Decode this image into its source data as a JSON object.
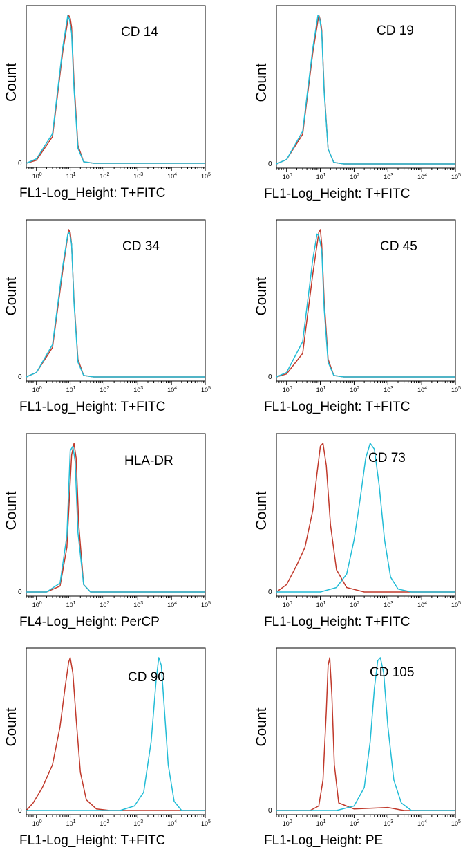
{
  "figure": {
    "ylabel": "Count",
    "zero_label": "0",
    "series_colors": {
      "control": "#c0392b",
      "antibody": "#22bcd6"
    }
  },
  "chart_data": [
    {
      "type": "line",
      "title": "CD 14",
      "xlabel": "FL1-Log_Height: T+FITC",
      "ylabel": "Count",
      "xscale": "log",
      "xlim": [
        0.5,
        100000
      ],
      "ylim": [
        0,
        1.0
      ],
      "grid": false,
      "series": [
        {
          "values_x": [
            0.5,
            1.0,
            3.0,
            6.0,
            9.0,
            10.0,
            11.0,
            13.0,
            17.0,
            25.0,
            50.0,
            100000
          ],
          "values_y": [
            0.0,
            0.02,
            0.18,
            0.75,
            1.0,
            0.98,
            0.92,
            0.55,
            0.12,
            0.01,
            0.0,
            0.0
          ]
        },
        {
          "values_x": [
            0.5,
            1.0,
            3.0,
            6.0,
            8.5,
            9.5,
            11.0,
            13.0,
            17.0,
            25.0,
            50.0,
            100000
          ],
          "values_y": [
            0.0,
            0.03,
            0.2,
            0.78,
            1.0,
            0.97,
            0.88,
            0.5,
            0.1,
            0.01,
            0.0,
            0.0
          ]
        }
      ]
    },
    {
      "type": "line",
      "title": "CD 19",
      "xlabel": "FL1-Log_Height: T+FITC",
      "ylabel": "Count",
      "xscale": "log",
      "xlim": [
        0.5,
        100000
      ],
      "ylim": [
        0,
        1.0
      ],
      "grid": false,
      "series": [
        {
          "values_x": [
            0.5,
            1.0,
            3.0,
            6.0,
            9.0,
            10.0,
            11.0,
            13.0,
            17.0,
            25.0,
            50.0,
            100000
          ],
          "values_y": [
            0.0,
            0.03,
            0.2,
            0.75,
            1.0,
            0.97,
            0.9,
            0.5,
            0.1,
            0.01,
            0.0,
            0.0
          ]
        },
        {
          "values_x": [
            0.5,
            1.0,
            3.0,
            6.0,
            8.5,
            9.5,
            11.0,
            13.0,
            17.0,
            25.0,
            50.0,
            100000
          ],
          "values_y": [
            0.0,
            0.03,
            0.22,
            0.78,
            1.0,
            0.98,
            0.88,
            0.48,
            0.1,
            0.01,
            0.0,
            0.0
          ]
        }
      ]
    },
    {
      "type": "line",
      "title": "CD 34",
      "xlabel": "FL1-Log_Height: T+FITC",
      "ylabel": "Count",
      "xscale": "log",
      "xlim": [
        0.5,
        100000
      ],
      "ylim": [
        0,
        1.0
      ],
      "grid": false,
      "series": [
        {
          "values_x": [
            0.5,
            1.0,
            3.0,
            6.0,
            9.0,
            10.0,
            11.0,
            13.0,
            17.0,
            25.0,
            50.0,
            100000
          ],
          "values_y": [
            0.0,
            0.03,
            0.2,
            0.72,
            1.0,
            0.98,
            0.9,
            0.52,
            0.12,
            0.01,
            0.0,
            0.0
          ]
        },
        {
          "values_x": [
            0.5,
            1.0,
            3.0,
            6.0,
            8.5,
            9.5,
            11.0,
            13.0,
            17.0,
            25.0,
            50.0,
            100000
          ],
          "values_y": [
            0.0,
            0.03,
            0.22,
            0.75,
            0.97,
            0.98,
            0.9,
            0.5,
            0.1,
            0.01,
            0.0,
            0.0
          ]
        }
      ]
    },
    {
      "type": "line",
      "title": "CD 45",
      "xlabel": "FL1-Log_Height: T+FITC",
      "ylabel": "Count",
      "xscale": "log",
      "xlim": [
        0.5,
        100000
      ],
      "ylim": [
        0,
        1.0
      ],
      "grid": false,
      "series": [
        {
          "values_x": [
            0.5,
            1.0,
            3.0,
            6.0,
            9.0,
            10.0,
            11.0,
            13.0,
            17.0,
            25.0,
            50.0,
            100000
          ],
          "values_y": [
            0.0,
            0.02,
            0.16,
            0.7,
            0.98,
            1.0,
            0.9,
            0.52,
            0.12,
            0.01,
            0.0,
            0.0
          ]
        },
        {
          "values_x": [
            0.5,
            1.0,
            3.0,
            6.0,
            8.0,
            9.0,
            11.0,
            13.0,
            17.0,
            25.0,
            50.0,
            100000
          ],
          "values_y": [
            0.0,
            0.03,
            0.24,
            0.8,
            0.97,
            0.96,
            0.86,
            0.46,
            0.1,
            0.01,
            0.0,
            0.0
          ]
        }
      ]
    },
    {
      "type": "line",
      "title": "HLA-DR",
      "xlabel": "FL4-Log_Height: PerCP",
      "ylabel": "Count",
      "xscale": "log",
      "xlim": [
        0.5,
        100000
      ],
      "ylim": [
        0,
        1.0
      ],
      "grid": false,
      "series": [
        {
          "values_x": [
            0.5,
            2.0,
            5.0,
            8.0,
            11.0,
            13.0,
            15.0,
            18.0,
            25.0,
            40.0,
            100000
          ],
          "values_y": [
            0.0,
            0.0,
            0.04,
            0.3,
            0.92,
            1.0,
            0.9,
            0.45,
            0.05,
            0.0,
            0.0
          ]
        },
        {
          "values_x": [
            0.5,
            2.0,
            5.0,
            8.0,
            10.0,
            12.0,
            14.0,
            17.0,
            25.0,
            40.0,
            100000
          ],
          "values_y": [
            0.0,
            0.0,
            0.06,
            0.38,
            0.95,
            0.98,
            0.88,
            0.4,
            0.05,
            0.0,
            0.0
          ]
        }
      ]
    },
    {
      "type": "line",
      "title": "CD 73",
      "xlabel": "FL1-Log_Height: T+FITC",
      "ylabel": "Count",
      "xscale": "log",
      "xlim": [
        0.5,
        100000
      ],
      "ylim": [
        0,
        1.0
      ],
      "grid": false,
      "series": [
        {
          "values_x": [
            0.5,
            1.0,
            2.0,
            3.5,
            6.0,
            8.0,
            10.0,
            12.0,
            15.0,
            20.0,
            30.0,
            60.0,
            200.0,
            1000.0,
            100000
          ],
          "values_y": [
            0.0,
            0.05,
            0.18,
            0.3,
            0.55,
            0.8,
            0.98,
            1.0,
            0.85,
            0.45,
            0.15,
            0.03,
            0.0,
            0.0,
            0.0
          ]
        },
        {
          "values_x": [
            0.5,
            10.0,
            30.0,
            60.0,
            100.0,
            150.0,
            220.0,
            300.0,
            400.0,
            550.0,
            800.0,
            1200.0,
            2000.0,
            5000.0,
            100000
          ],
          "values_y": [
            0.0,
            0.0,
            0.03,
            0.12,
            0.35,
            0.62,
            0.9,
            1.0,
            0.96,
            0.72,
            0.35,
            0.1,
            0.02,
            0.0,
            0.0
          ]
        }
      ]
    },
    {
      "type": "line",
      "title": "CD 90",
      "xlabel": "FL1-Log_Height: T+FITC",
      "ylabel": "Count",
      "xscale": "log",
      "xlim": [
        0.5,
        100000
      ],
      "ylim": [
        0,
        1.0
      ],
      "grid": false,
      "series": [
        {
          "values_x": [
            0.5,
            0.8,
            1.5,
            3.0,
            5.0,
            7.0,
            9.0,
            10.0,
            12.0,
            15.0,
            20.0,
            30.0,
            60.0,
            150.0,
            100000
          ],
          "values_y": [
            0.0,
            0.05,
            0.15,
            0.3,
            0.55,
            0.8,
            0.97,
            1.0,
            0.9,
            0.6,
            0.25,
            0.07,
            0.01,
            0.0,
            0.0
          ]
        },
        {
          "values_x": [
            0.5,
            300.0,
            800.0,
            1500.0,
            2500.0,
            3500.0,
            4200.0,
            5000.0,
            6000.0,
            8000.0,
            12000.0,
            20000.0,
            100000
          ],
          "values_y": [
            0.0,
            0.0,
            0.03,
            0.12,
            0.45,
            0.85,
            1.0,
            0.95,
            0.7,
            0.3,
            0.06,
            0.0,
            0.0
          ]
        }
      ]
    },
    {
      "type": "line",
      "title": "CD 105",
      "xlabel": "FL1-Log_Height:  PE",
      "ylabel": "Count",
      "xscale": "log",
      "xlim": [
        0.5,
        100000
      ],
      "ylim": [
        0,
        1.0
      ],
      "grid": false,
      "series": [
        {
          "values_x": [
            0.5,
            5.0,
            9.0,
            12.0,
            15.0,
            17.0,
            19.0,
            22.0,
            26.0,
            35.0,
            100.0,
            1000.0,
            3000.0,
            100000
          ],
          "values_y": [
            0.0,
            0.0,
            0.03,
            0.2,
            0.65,
            0.95,
            1.0,
            0.75,
            0.3,
            0.05,
            0.01,
            0.02,
            0.0,
            0.0
          ]
        },
        {
          "values_x": [
            0.5,
            30.0,
            100.0,
            200.0,
            300.0,
            400.0,
            500.0,
            600.0,
            750.0,
            1000.0,
            1500.0,
            2500.0,
            5000.0,
            100000
          ],
          "values_y": [
            0.0,
            0.0,
            0.03,
            0.15,
            0.45,
            0.8,
            0.98,
            1.0,
            0.9,
            0.55,
            0.2,
            0.05,
            0.0,
            0.0
          ]
        }
      ]
    }
  ]
}
